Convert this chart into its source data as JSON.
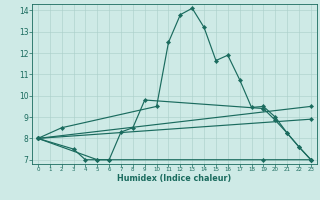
{
  "xlabel": "Humidex (Indice chaleur)",
  "bg_color": "#ceeae6",
  "grid_color": "#aacec9",
  "line_color": "#1a6b5e",
  "xlim": [
    -0.5,
    23.5
  ],
  "ylim": [
    6.8,
    14.3
  ],
  "xticks": [
    0,
    1,
    2,
    3,
    4,
    5,
    6,
    7,
    8,
    9,
    10,
    11,
    12,
    13,
    14,
    15,
    16,
    17,
    18,
    19,
    20,
    21,
    22,
    23
  ],
  "yticks": [
    7,
    8,
    9,
    10,
    11,
    12,
    13,
    14
  ],
  "line1_x": [
    0,
    2,
    10,
    11,
    12,
    13,
    14,
    15,
    16,
    17,
    18,
    19,
    20,
    21,
    22,
    23
  ],
  "line1_y": [
    8.0,
    8.5,
    9.5,
    12.5,
    13.8,
    14.1,
    13.2,
    11.65,
    11.9,
    10.75,
    9.45,
    9.5,
    9.0,
    8.25,
    7.6,
    7.0
  ],
  "line2_x": [
    0,
    5,
    6,
    7,
    8,
    9,
    19,
    20,
    21,
    22,
    23
  ],
  "line2_y": [
    8.0,
    7.0,
    7.0,
    8.3,
    8.5,
    9.8,
    9.4,
    8.85,
    8.25,
    7.6,
    7.0
  ],
  "line3_x": [
    0,
    3,
    4,
    5,
    6,
    19,
    23
  ],
  "line3_y": [
    8.0,
    7.5,
    7.0,
    7.0,
    7.0,
    7.0,
    7.0
  ],
  "line4_x": [
    0,
    23
  ],
  "line4_y": [
    8.0,
    9.5
  ],
  "line5_x": [
    0,
    23
  ],
  "line5_y": [
    8.0,
    8.9
  ]
}
